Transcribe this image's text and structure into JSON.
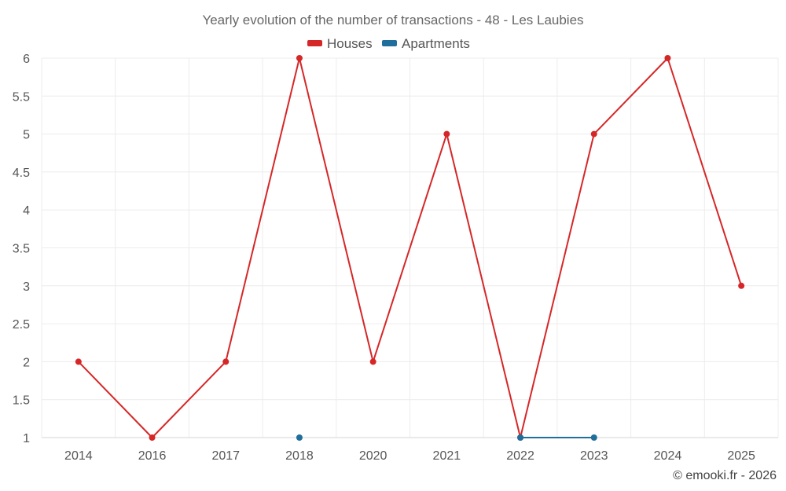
{
  "chart_data": {
    "type": "line",
    "title": "Yearly evolution of the number of transactions - 48 - Les Laubies",
    "categories": [
      "2014",
      "2016",
      "2017",
      "2018",
      "2020",
      "2021",
      "2022",
      "2023",
      "2024",
      "2025"
    ],
    "series": [
      {
        "name": "Houses",
        "color": "#d62728",
        "values": [
          2,
          1,
          2,
          6,
          2,
          5,
          1,
          5,
          6,
          3
        ]
      },
      {
        "name": "Apartments",
        "color": "#1f6e9c",
        "values": [
          null,
          null,
          null,
          1,
          null,
          null,
          1,
          1,
          null,
          null
        ]
      }
    ],
    "ylim": [
      1,
      6
    ],
    "yticks": [
      "1",
      "1.5",
      "2",
      "2.5",
      "3",
      "3.5",
      "4",
      "4.5",
      "5",
      "5.5",
      "6"
    ],
    "grid": true,
    "legend_position": "top-center",
    "xlabel": "",
    "ylabel": ""
  },
  "credit": "© emooki.fr - 2026"
}
